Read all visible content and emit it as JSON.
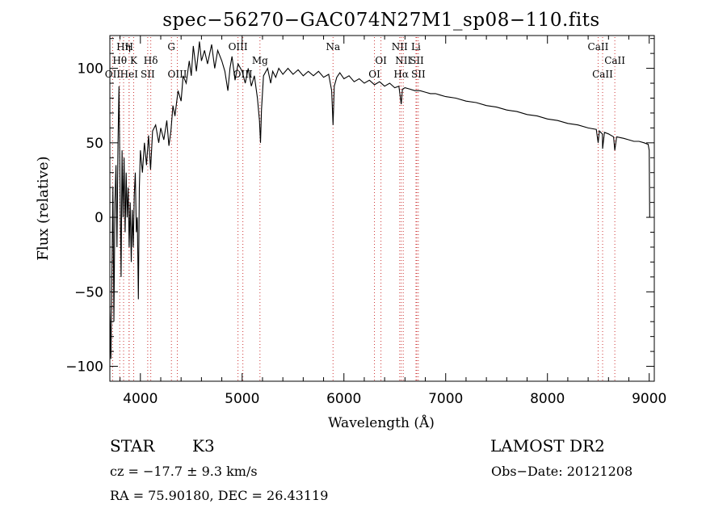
{
  "header": {
    "title": "spec−56270−GAC074N27M1_sp08−110.fits"
  },
  "info": {
    "class_label": "STAR",
    "subclass": "K3",
    "survey": "LAMOST DR2",
    "redshift_text": "cz = −17.7 ± 9.3 km/s",
    "obs_date": "Obs−Date: 20121208",
    "coords": "RA =  75.90180, DEC =  26.43119"
  },
  "chart_data": {
    "type": "line",
    "title": "spec−56270−GAC074N27M1_sp08−110.fits",
    "xlabel": "Wavelength (Å)",
    "ylabel": "Flux (relative)",
    "xlim": [
      3700,
      9050
    ],
    "ylim": [
      -110,
      122
    ],
    "xticks": [
      4000,
      5000,
      6000,
      7000,
      8000,
      9000
    ],
    "yticks": [
      -100,
      -50,
      0,
      50,
      100
    ],
    "line_color": "#000000",
    "marker_color": "#cc3333",
    "series": [
      {
        "points": [
          [
            3700,
            -60
          ],
          [
            3710,
            -95
          ],
          [
            3720,
            -40
          ],
          [
            3730,
            20
          ],
          [
            3740,
            -70
          ],
          [
            3750,
            10
          ],
          [
            3760,
            35
          ],
          [
            3770,
            -20
          ],
          [
            3780,
            50
          ],
          [
            3790,
            88
          ],
          [
            3800,
            20
          ],
          [
            3810,
            -40
          ],
          [
            3820,
            45
          ],
          [
            3830,
            0
          ],
          [
            3840,
            40
          ],
          [
            3850,
            -10
          ],
          [
            3860,
            30
          ],
          [
            3870,
            0
          ],
          [
            3880,
            20
          ],
          [
            3890,
            -20
          ],
          [
            3900,
            10
          ],
          [
            3910,
            -30
          ],
          [
            3920,
            5
          ],
          [
            3930,
            -20
          ],
          [
            3940,
            15
          ],
          [
            3950,
            30
          ],
          [
            3960,
            -10
          ],
          [
            3970,
            0
          ],
          [
            3980,
            -55
          ],
          [
            3990,
            20
          ],
          [
            4000,
            45
          ],
          [
            4020,
            30
          ],
          [
            4040,
            50
          ],
          [
            4060,
            35
          ],
          [
            4080,
            55
          ],
          [
            4100,
            32
          ],
          [
            4120,
            58
          ],
          [
            4150,
            62
          ],
          [
            4180,
            50
          ],
          [
            4200,
            60
          ],
          [
            4230,
            52
          ],
          [
            4260,
            65
          ],
          [
            4280,
            48
          ],
          [
            4300,
            58
          ],
          [
            4320,
            75
          ],
          [
            4340,
            68
          ],
          [
            4370,
            85
          ],
          [
            4400,
            78
          ],
          [
            4420,
            95
          ],
          [
            4450,
            90
          ],
          [
            4480,
            105
          ],
          [
            4500,
            95
          ],
          [
            4520,
            115
          ],
          [
            4550,
            98
          ],
          [
            4580,
            118
          ],
          [
            4600,
            105
          ],
          [
            4630,
            112
          ],
          [
            4660,
            103
          ],
          [
            4700,
            116
          ],
          [
            4730,
            100
          ],
          [
            4760,
            112
          ],
          [
            4800,
            105
          ],
          [
            4830,
            98
          ],
          [
            4860,
            85
          ],
          [
            4880,
            100
          ],
          [
            4900,
            108
          ],
          [
            4930,
            92
          ],
          [
            4960,
            103
          ],
          [
            5000,
            98
          ],
          [
            5030,
            90
          ],
          [
            5060,
            100
          ],
          [
            5090,
            88
          ],
          [
            5120,
            95
          ],
          [
            5150,
            80
          ],
          [
            5170,
            65
          ],
          [
            5180,
            50
          ],
          [
            5190,
            72
          ],
          [
            5210,
            95
          ],
          [
            5250,
            100
          ],
          [
            5280,
            90
          ],
          [
            5300,
            98
          ],
          [
            5330,
            94
          ],
          [
            5360,
            100
          ],
          [
            5400,
            96
          ],
          [
            5450,
            100
          ],
          [
            5500,
            96
          ],
          [
            5550,
            99
          ],
          [
            5600,
            95
          ],
          [
            5650,
            98
          ],
          [
            5700,
            95
          ],
          [
            5750,
            98
          ],
          [
            5800,
            94
          ],
          [
            5850,
            96
          ],
          [
            5880,
            85
          ],
          [
            5893,
            62
          ],
          [
            5905,
            88
          ],
          [
            5930,
            94
          ],
          [
            5960,
            97
          ],
          [
            6000,
            93
          ],
          [
            6050,
            95
          ],
          [
            6100,
            91
          ],
          [
            6150,
            93
          ],
          [
            6200,
            90
          ],
          [
            6250,
            92
          ],
          [
            6300,
            89
          ],
          [
            6350,
            91
          ],
          [
            6400,
            88
          ],
          [
            6450,
            90
          ],
          [
            6500,
            87
          ],
          [
            6540,
            88
          ],
          [
            6563,
            76
          ],
          [
            6575,
            86
          ],
          [
            6600,
            87
          ],
          [
            6650,
            86
          ],
          [
            6700,
            85
          ],
          [
            6750,
            85
          ],
          [
            6800,
            84
          ],
          [
            6850,
            83
          ],
          [
            6900,
            83
          ],
          [
            6950,
            82
          ],
          [
            7000,
            81
          ],
          [
            7100,
            80
          ],
          [
            7200,
            78
          ],
          [
            7300,
            77
          ],
          [
            7400,
            75
          ],
          [
            7500,
            74
          ],
          [
            7600,
            72
          ],
          [
            7700,
            71
          ],
          [
            7800,
            69
          ],
          [
            7900,
            68
          ],
          [
            8000,
            66
          ],
          [
            8100,
            65
          ],
          [
            8200,
            63
          ],
          [
            8300,
            62
          ],
          [
            8400,
            60
          ],
          [
            8480,
            59
          ],
          [
            8498,
            50
          ],
          [
            8510,
            58
          ],
          [
            8540,
            56
          ],
          [
            8542,
            46
          ],
          [
            8560,
            57
          ],
          [
            8600,
            56
          ],
          [
            8650,
            54
          ],
          [
            8662,
            45
          ],
          [
            8680,
            54
          ],
          [
            8750,
            53
          ],
          [
            8800,
            52
          ],
          [
            8850,
            51
          ],
          [
            8900,
            51
          ],
          [
            8950,
            50
          ],
          [
            8990,
            49
          ],
          [
            9000,
            45
          ],
          [
            9005,
            0
          ]
        ]
      }
    ],
    "annotations": [
      {
        "label": "Hη",
        "wavelength": 3835,
        "row": 1,
        "color": "#cc3333"
      },
      {
        "label": "H",
        "wavelength": 3889,
        "row": 1,
        "color": "#cc3333"
      },
      {
        "label": "Hθ",
        "wavelength": 3797,
        "row": 2,
        "color": "#cc3333"
      },
      {
        "label": "K",
        "wavelength": 3934,
        "row": 2,
        "color": "#cc3333"
      },
      {
        "label": "Hδ",
        "wavelength": 4102,
        "row": 2,
        "color": "#cc3333"
      },
      {
        "label": "OII",
        "wavelength": 3727,
        "row": 3,
        "color": "#cc3333"
      },
      {
        "label": "HeI",
        "wavelength": 3889,
        "row": 3,
        "color": "#cc3333"
      },
      {
        "label": "SII",
        "wavelength": 4072,
        "row": 3,
        "color": "#cc3333"
      },
      {
        "label": "G",
        "wavelength": 4305,
        "row": 1,
        "color": "#cc3333"
      },
      {
        "label": "OIII",
        "wavelength": 4363,
        "row": 3,
        "color": "#cc3333"
      },
      {
        "label": "OIII",
        "wavelength": 4959,
        "row": 1,
        "color": "#cc3333"
      },
      {
        "label": "Mg",
        "wavelength": 5175,
        "row": 2,
        "color": "#cc3333"
      },
      {
        "label": "OIII",
        "wavelength": 5007,
        "row": 3,
        "color": "#cc3333"
      },
      {
        "label": "Na",
        "wavelength": 5893,
        "row": 1,
        "color": "#cc3333"
      },
      {
        "label": "OI",
        "wavelength": 6300,
        "row": 3,
        "color": "#cc3333"
      },
      {
        "label": "OI",
        "wavelength": 6364,
        "row": 2,
        "color": "#cc3333"
      },
      {
        "label": "NII",
        "wavelength": 6548,
        "row": 1,
        "color": "#cc3333"
      },
      {
        "label": "NII",
        "wavelength": 6583,
        "row": 2,
        "color": "#cc3333"
      },
      {
        "label": "Hα",
        "wavelength": 6563,
        "row": 3,
        "color": "#cc3333"
      },
      {
        "label": "Li",
        "wavelength": 6708,
        "row": 1,
        "color": "#cc3333"
      },
      {
        "label": "SII",
        "wavelength": 6716,
        "row": 2,
        "color": "#cc3333"
      },
      {
        "label": "SII",
        "wavelength": 6731,
        "row": 3,
        "color": "#cc3333"
      },
      {
        "label": "CaII",
        "wavelength": 8498,
        "row": 1,
        "color": "#cc3333"
      },
      {
        "label": "CaII",
        "wavelength": 8542,
        "row": 3,
        "color": "#cc3333"
      },
      {
        "label": "CaII",
        "wavelength": 8662,
        "row": 2,
        "color": "#cc3333"
      }
    ]
  }
}
